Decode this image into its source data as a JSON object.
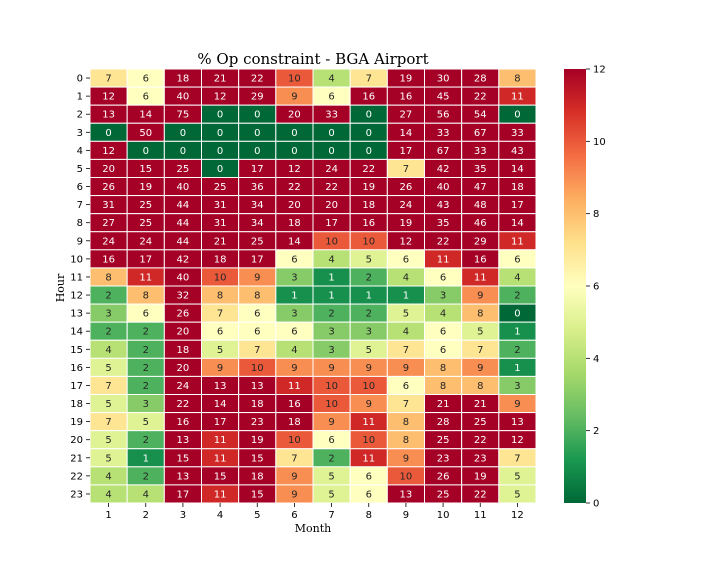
{
  "chart_data": {
    "type": "heatmap",
    "title": "% Op constraint - BGA Airport",
    "xlabel": "Month",
    "ylabel": "Hour",
    "x_categories": [
      "1",
      "2",
      "3",
      "4",
      "5",
      "6",
      "7",
      "8",
      "9",
      "10",
      "11",
      "12"
    ],
    "y_categories": [
      "0",
      "1",
      "2",
      "3",
      "4",
      "5",
      "6",
      "7",
      "8",
      "9",
      "10",
      "11",
      "12",
      "13",
      "14",
      "15",
      "16",
      "17",
      "18",
      "19",
      "20",
      "21",
      "22",
      "23"
    ],
    "values": [
      [
        7,
        6,
        18,
        21,
        22,
        10,
        4,
        7,
        19,
        30,
        28,
        8
      ],
      [
        12,
        6,
        40,
        12,
        29,
        9,
        6,
        16,
        16,
        45,
        22,
        11
      ],
      [
        13,
        14,
        75,
        0,
        0,
        20,
        33,
        0,
        27,
        56,
        54,
        0
      ],
      [
        0,
        50,
        0,
        0,
        0,
        0,
        0,
        0,
        14,
        33,
        67,
        33
      ],
      [
        12,
        0,
        0,
        0,
        0,
        0,
        0,
        0,
        17,
        67,
        33,
        43
      ],
      [
        20,
        15,
        25,
        0,
        17,
        12,
        24,
        22,
        7,
        42,
        35,
        14
      ],
      [
        26,
        19,
        40,
        25,
        36,
        22,
        22,
        19,
        26,
        40,
        47,
        18
      ],
      [
        31,
        25,
        44,
        31,
        34,
        20,
        20,
        18,
        24,
        43,
        48,
        17
      ],
      [
        27,
        25,
        44,
        31,
        34,
        18,
        17,
        16,
        19,
        35,
        46,
        14
      ],
      [
        24,
        24,
        44,
        21,
        25,
        14,
        10,
        10,
        12,
        22,
        29,
        11
      ],
      [
        16,
        17,
        42,
        18,
        17,
        6,
        4,
        5,
        6,
        11,
        16,
        6
      ],
      [
        8,
        11,
        40,
        10,
        9,
        3,
        1,
        2,
        4,
        6,
        11,
        4
      ],
      [
        2,
        8,
        32,
        8,
        8,
        1,
        1,
        1,
        1,
        3,
        9,
        2
      ],
      [
        3,
        6,
        26,
        7,
        6,
        3,
        2,
        2,
        5,
        4,
        8,
        0
      ],
      [
        2,
        2,
        20,
        6,
        6,
        6,
        3,
        3,
        4,
        6,
        5,
        1
      ],
      [
        4,
        2,
        18,
        5,
        7,
        4,
        3,
        5,
        7,
        6,
        7,
        2
      ],
      [
        5,
        2,
        20,
        9,
        10,
        9,
        9,
        9,
        9,
        8,
        9,
        1
      ],
      [
        7,
        2,
        24,
        13,
        13,
        11,
        10,
        10,
        6,
        8,
        8,
        3
      ],
      [
        5,
        3,
        22,
        14,
        18,
        16,
        10,
        9,
        7,
        21,
        21,
        9
      ],
      [
        7,
        5,
        16,
        17,
        23,
        18,
        9,
        11,
        8,
        28,
        25,
        13
      ],
      [
        5,
        2,
        13,
        11,
        19,
        10,
        6,
        10,
        8,
        25,
        22,
        12
      ],
      [
        5,
        1,
        15,
        11,
        15,
        7,
        2,
        11,
        9,
        23,
        23,
        7
      ],
      [
        4,
        2,
        13,
        15,
        18,
        9,
        5,
        6,
        10,
        26,
        19,
        5
      ],
      [
        4,
        4,
        17,
        11,
        15,
        9,
        5,
        6,
        13,
        25,
        22,
        5
      ]
    ],
    "colorbar": {
      "min": 0,
      "max": 12,
      "ticks": [
        "0",
        "2",
        "4",
        "6",
        "8",
        "10",
        "12"
      ]
    },
    "colormap": "RdYlGn_r",
    "grid": false
  }
}
